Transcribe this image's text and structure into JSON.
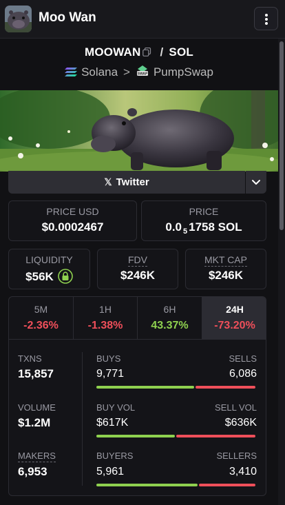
{
  "header": {
    "title": "Moo Wan",
    "avatar_icon": "hippo-avatar",
    "menu_icon": "vertical-dots-icon"
  },
  "pair": {
    "base": "MOOWAN",
    "quote": "SOL",
    "separator": "/",
    "chain": "Solana",
    "dex": "PumpSwap",
    "chain_chevron": ">"
  },
  "socials": {
    "twitter_label": "Twitter",
    "x_glyph": "𝕏"
  },
  "prices": {
    "price_usd_label": "PRICE USD",
    "price_usd": "$0.0002467",
    "price_label": "PRICE",
    "price_native_lead": "0.0",
    "price_native_sub": "5",
    "price_native_tail": "1758 SOL"
  },
  "metrics": {
    "liquidity_label": "LIQUIDITY",
    "liquidity": "$56K",
    "fdv_label": "FDV",
    "fdv": "$246K",
    "mktcap_label": "MKT CAP",
    "mktcap": "$246K"
  },
  "timeframes": [
    {
      "label": "5M",
      "change": "-2.36%"
    },
    {
      "label": "1H",
      "change": "-1.38%"
    },
    {
      "label": "6H",
      "change": "43.37%"
    },
    {
      "label": "24H",
      "change": "-73.20%"
    }
  ],
  "active_timeframe": "24H",
  "stats": {
    "txns_label": "TXNS",
    "txns": "15,857",
    "volume_label": "VOLUME",
    "volume": "$1.2M",
    "makers_label": "MAKERS",
    "makers": "6,953",
    "buys_label": "BUYS",
    "buys": "9,771",
    "sells_label": "SELLS",
    "sells": "6,086",
    "buy_vol_label": "BUY VOL",
    "buy_vol": "$617K",
    "sell_vol_label": "SELL VOL",
    "sell_vol": "$636K",
    "buyers_label": "BUYERS",
    "buyers": "5,961",
    "sellers_label": "SELLERS",
    "sellers": "3,410"
  },
  "colors": {
    "positive": "#8fd14f",
    "negative": "#ef4f5a",
    "background": "#111114"
  }
}
